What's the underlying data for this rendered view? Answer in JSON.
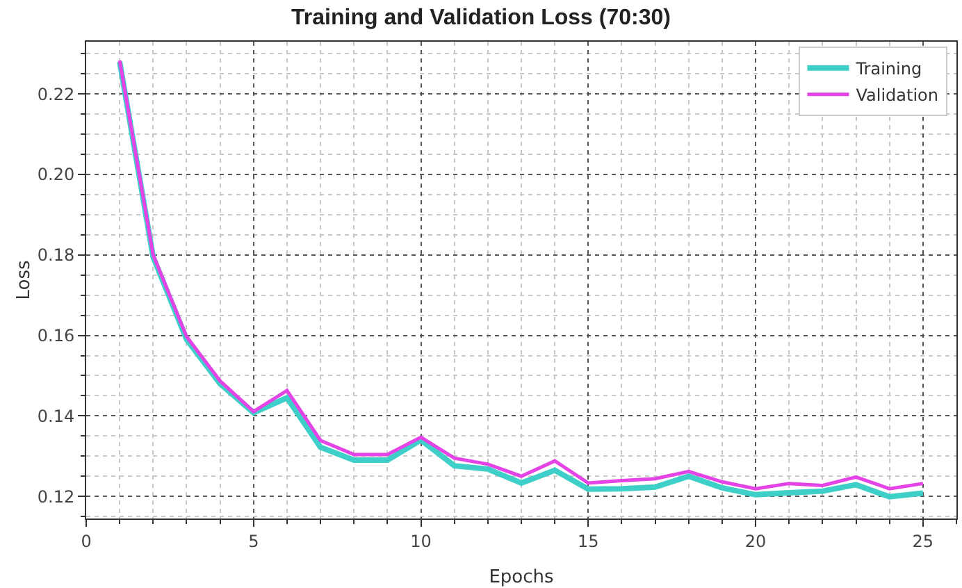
{
  "chart_data": {
    "type": "line",
    "title": "Training and Validation Loss (70:30)",
    "xlabel": "Epochs",
    "ylabel": "Loss",
    "x": [
      1,
      2,
      3,
      4,
      5,
      6,
      7,
      8,
      9,
      10,
      11,
      12,
      13,
      14,
      15,
      16,
      17,
      18,
      19,
      20,
      21,
      22,
      23,
      24,
      25
    ],
    "series": [
      {
        "name": "Training",
        "color": "#3ecfc9",
        "values": [
          0.228,
          0.1795,
          0.159,
          0.148,
          0.1408,
          0.1445,
          0.1322,
          0.129,
          0.129,
          0.134,
          0.1276,
          0.1268,
          0.1233,
          0.1265,
          0.1218,
          0.1219,
          0.1223,
          0.125,
          0.1221,
          0.1204,
          0.1209,
          0.1213,
          0.1229,
          0.1199,
          0.1208
        ]
      },
      {
        "name": "Validation",
        "color": "#e444e6",
        "values": [
          0.2283,
          0.18,
          0.1597,
          0.1487,
          0.1411,
          0.1463,
          0.1339,
          0.1304,
          0.1304,
          0.1347,
          0.1295,
          0.128,
          0.125,
          0.1288,
          0.1233,
          0.1239,
          0.1244,
          0.1262,
          0.1236,
          0.1219,
          0.1232,
          0.1227,
          0.1248,
          0.1219,
          0.1232
        ]
      }
    ],
    "xlim": [
      0,
      26
    ],
    "xticks": [
      0,
      5,
      10,
      15,
      20,
      25
    ],
    "ylim": [
      0.1145,
      0.233
    ],
    "yticks": [
      {
        "value": 0.12,
        "label": "0.12"
      },
      {
        "value": 0.14,
        "label": "0.14"
      },
      {
        "value": 0.16,
        "label": "0.16"
      },
      {
        "value": 0.18,
        "label": "0.18"
      },
      {
        "value": 0.2,
        "label": "0.20"
      },
      {
        "value": 0.22,
        "label": "0.22"
      }
    ],
    "grid": true,
    "legend": "top right",
    "marker": "none",
    "line_style": "solid"
  }
}
